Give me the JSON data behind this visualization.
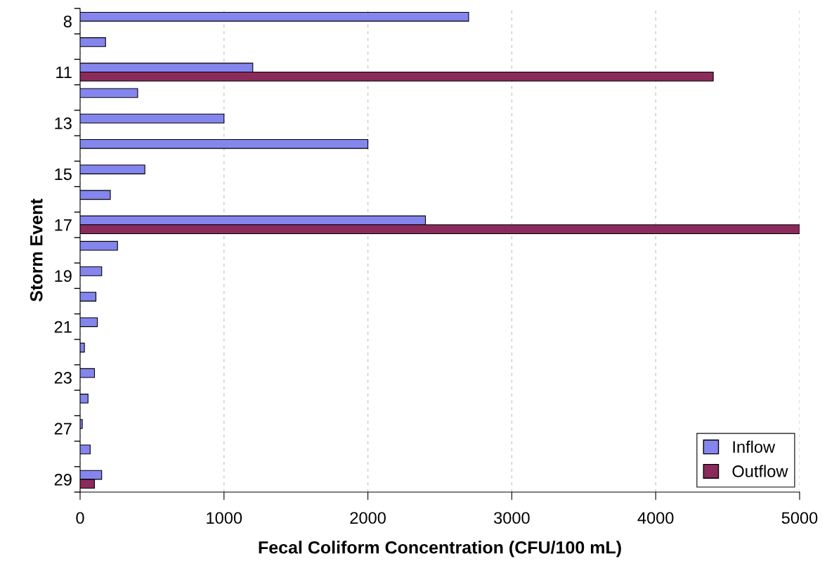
{
  "chart_data": {
    "type": "bar",
    "orientation": "horizontal",
    "xlabel": "Fecal Coliform Concentration (CFU/100 mL)",
    "ylabel": "Storm Event",
    "categories": [
      "8",
      null,
      "11",
      null,
      "13",
      null,
      "15",
      null,
      "17",
      null,
      "19",
      null,
      "21",
      null,
      "23",
      null,
      "27",
      null,
      "29"
    ],
    "series": [
      {
        "name": "Inflow",
        "color": "#8585ee",
        "values": [
          2700,
          177,
          1200,
          400,
          1000,
          2000,
          450,
          210,
          2400,
          260,
          150,
          110,
          120,
          30,
          100,
          55,
          15,
          70,
          150
        ]
      },
      {
        "name": "Outflow",
        "color": "#8b2b5c",
        "values": [
          null,
          null,
          4400,
          null,
          null,
          null,
          null,
          null,
          5000,
          null,
          null,
          null,
          null,
          null,
          null,
          null,
          null,
          null,
          100
        ]
      }
    ],
    "xlim": [
      0,
      5000
    ],
    "xticks": [
      0,
      1000,
      2000,
      3000,
      4000,
      5000
    ],
    "grid": "x",
    "legend": "bottom right"
  }
}
